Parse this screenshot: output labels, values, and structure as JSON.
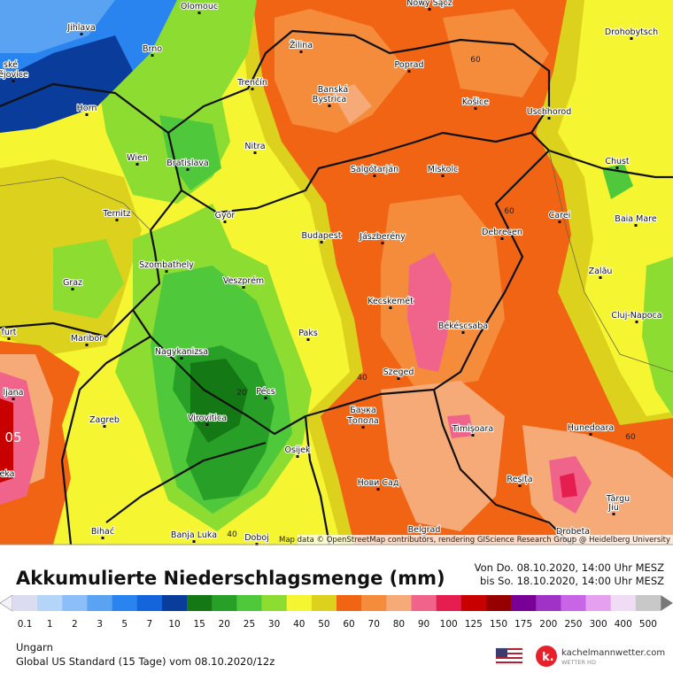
{
  "map": {
    "cities": [
      "Olomouc",
      "Jihlava",
      "Brno",
      "ské",
      "ějovice",
      "Žilina",
      "Poprad",
      "Nowy Sącz",
      "Drohobytsch",
      "Banská",
      "Bystrica",
      "Košice",
      "Uschhorod",
      "Horn",
      "Trenčín",
      "Nitra",
      "Wien",
      "Bratislava",
      "Salgótarján",
      "Miskolc",
      "Chust",
      "Ternitz",
      "Győr",
      "Budapest",
      "Jászberény",
      "Debrecen",
      "Carei",
      "Baia Mare",
      "Szombathely",
      "Graz",
      "Veszprém",
      "Zalău",
      "Kecskemét",
      "Cluj-Napoca",
      "furt",
      "Maribor",
      "Paks",
      "Békéscsaba",
      "Nagykanizsa",
      "Szeged",
      "ljana",
      "Pécs",
      "Zagreb",
      "Virovitica",
      "Бачка",
      "Топола",
      "Timișoara",
      "Hunedoara",
      "Osijek",
      "eka",
      "Нови Сад",
      "Reșița",
      "Târgu",
      "Jiu",
      "Belgrad",
      "Drobeta",
      "Bihać",
      "Banja Luka",
      "Doboj"
    ],
    "contour_labels": [
      "60",
      "60",
      "40",
      "20",
      "40",
      "60",
      "05"
    ],
    "attribution": "Map data © OpenStreetMap contributors, rendering GIScience Research Group @ Heidelberg University"
  },
  "legend": {
    "title": "Akkumulierte Niederschlagsmenge (mm)",
    "period": [
      "Von Do. 08.10.2020, 14:00 Uhr MESZ",
      "bis So. 18.10.2020, 14:00 Uhr MESZ"
    ],
    "scale": [
      {
        "label": "0.1",
        "color": "#dcdcf0"
      },
      {
        "label": "1",
        "color": "#b4d4f8"
      },
      {
        "label": "2",
        "color": "#8cbef8"
      },
      {
        "label": "3",
        "color": "#5aa2f2"
      },
      {
        "label": "5",
        "color": "#2a84f0"
      },
      {
        "label": "7",
        "color": "#1464dc"
      },
      {
        "label": "10",
        "color": "#0a3c9b"
      },
      {
        "label": "15",
        "color": "#147814"
      },
      {
        "label": "20",
        "color": "#28a028"
      },
      {
        "label": "25",
        "color": "#50c83c"
      },
      {
        "label": "30",
        "color": "#8cdc32"
      },
      {
        "label": "40",
        "color": "#f5f532"
      },
      {
        "label": "50",
        "color": "#dcd21e"
      },
      {
        "label": "60",
        "color": "#f06414"
      },
      {
        "label": "70",
        "color": "#f58c3c"
      },
      {
        "label": "80",
        "color": "#f5aa78"
      },
      {
        "label": "90",
        "color": "#f0648c"
      },
      {
        "label": "100",
        "color": "#e61e50"
      },
      {
        "label": "125",
        "color": "#c80000"
      },
      {
        "label": "150",
        "color": "#960000"
      },
      {
        "label": "175",
        "color": "#780096"
      },
      {
        "label": "200",
        "color": "#a032c8"
      },
      {
        "label": "250",
        "color": "#c864e6"
      },
      {
        "label": "300",
        "color": "#e6a0f0"
      },
      {
        "label": "400",
        "color": "#f0dcf5"
      },
      {
        "label": "500",
        "color": "#c8c8c8"
      }
    ]
  },
  "footer": {
    "region": "Ungarn",
    "model": "Global US Standard (15 Tage) vom 08.10.2020/12z",
    "brand": "kachelmannwetter.com",
    "brand_sub": "WETTER HD"
  }
}
